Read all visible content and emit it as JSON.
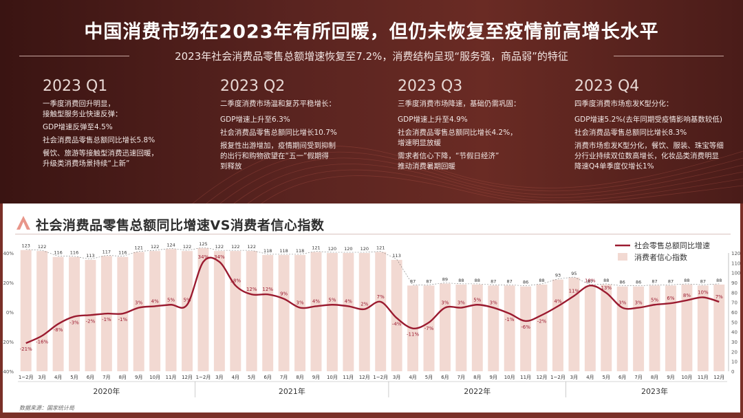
{
  "header": {
    "title": "中国消费市场在2023年有所回暖，但仍未恢复至疫情前高增长水平",
    "subtitle": "2023年社会消费品零售总额增速恢复至7.2%，消费结构呈现“服务强，商品弱”的特征"
  },
  "quarters": [
    {
      "title": "2023 Q1",
      "lines": [
        "一季度消费回升明显，",
        "接触型服务业快速反弹：",
        "GDP增速反弹至4.5%",
        "社会消费品零售总额同比增长5.8%",
        "餐饮、旅游等接触型消费迅速回暖，",
        "升级类消费场景持续“上新”"
      ]
    },
    {
      "title": "2023 Q2",
      "lines": [
        "二季度消费市场温和复苏平稳增长：",
        "GDP增速上升至6.3%",
        "社会消费品零售总额同比增长10.7%",
        "报复性出游增加，疫情期间受到抑制",
        "的出行和购物欲望在“五一”假期得",
        "到释放"
      ]
    },
    {
      "title": "2023 Q3",
      "lines": [
        "三季度消费市场降速，基础仍需巩固：",
        "GDP增速上升至4.9%",
        "社会消费品零售总额同比增长4.2%，",
        "增速明显放缓",
        "需求者信心下降，“节假日经济”",
        "推动消费暑期回暖"
      ]
    },
    {
      "title": "2023 Q4",
      "lines": [
        "四季度消费市场愈发K型分化：",
        "GDP增速5.2%(去年同期受疫情影响基数较低)",
        "社会消费品零售总额同比增长8.3%",
        "消费市场愈发K型分化，餐饮、服装、珠宝等细",
        "分行业持续双位数高增长，化妆品类消费明显",
        "降速Q4单季度仅增长1%"
      ]
    }
  ],
  "chart_section": {
    "title": "社会消费品零售总额同比增速VS消费者信心指数",
    "source": "数据来源：国家统计局"
  },
  "chart_data": {
    "type": "bar",
    "categories": [
      "1~2月",
      "3月",
      "4月",
      "5月",
      "6月",
      "7月",
      "8月",
      "9月",
      "10月",
      "11月",
      "12月",
      "1~2月",
      "3月",
      "4月",
      "5月",
      "6月",
      "7月",
      "8月",
      "9月",
      "10月",
      "11月",
      "12月",
      "1~2月",
      "3月",
      "4月",
      "5月",
      "6月",
      "7月",
      "8月",
      "9月",
      "10月",
      "11月",
      "12月",
      "1~2月",
      "3月",
      "4月",
      "5月",
      "6月",
      "7月",
      "8月",
      "9月",
      "10月",
      "11月",
      "12月"
    ],
    "year_groups": [
      {
        "label": "2020年",
        "start": 0,
        "end": 10
      },
      {
        "label": "2021年",
        "start": 11,
        "end": 22
      },
      {
        "label": "2022年",
        "start": 23,
        "end": 33
      },
      {
        "label": "2023年",
        "start": 34,
        "end": 44
      }
    ],
    "series": [
      {
        "name": "消费者信心指数",
        "type": "bar",
        "axis": "right",
        "values": [
          123,
          122,
          116,
          116,
          113,
          117,
          116,
          121,
          122,
          124,
          122,
          125,
          122,
          122,
          122,
          118,
          118,
          118,
          121,
          120,
          120,
          120,
          121,
          113,
          87,
          87,
          89,
          88,
          88,
          87,
          87,
          86,
          88,
          93,
          95,
          87,
          88,
          86,
          86,
          87,
          87,
          88,
          87,
          88
        ],
        "labels": [
          "123",
          "122",
          "116",
          "116",
          "113",
          "117",
          "116",
          "121",
          "122",
          "124",
          "122",
          "125",
          "122",
          "122",
          "122",
          "118",
          "118",
          "118",
          "121",
          "120",
          "120",
          "120",
          "121",
          "113",
          "87",
          "87",
          "89",
          "88",
          "88",
          "87",
          "87",
          "86",
          "88",
          "93",
          "95",
          "87",
          "88",
          "86",
          "86",
          "87",
          "87",
          "88",
          "87",
          "88"
        ]
      },
      {
        "name": "社会零售总额同比增速",
        "type": "line",
        "axis": "left",
        "values": [
          -21,
          -16,
          -8,
          -3,
          -2,
          -1,
          -1,
          3,
          4,
          5,
          5,
          34,
          34,
          18,
          12,
          12,
          9,
          3,
          4,
          5,
          4,
          2,
          7,
          -4,
          -11,
          -7,
          3,
          3,
          5,
          3,
          -1,
          -6,
          -2,
          4,
          11,
          18,
          13,
          3,
          3,
          5,
          6,
          8,
          10,
          7
        ],
        "labels": [
          "-21%",
          "-16%",
          "-8%",
          "-3%",
          "-2%",
          "-1%",
          "-1%",
          "3%",
          "4%",
          "5%",
          "5%",
          "34%",
          "34%",
          "18%",
          "12%",
          "12%",
          "9%",
          "3%",
          "4%",
          "5%",
          "4%",
          "2%",
          "7%",
          "-4%",
          "-11%",
          "-7%",
          "3%",
          "3%",
          "5%",
          "3%",
          "-1%",
          "-6%",
          "-2%",
          "4%",
          "11%",
          "18%",
          "13%",
          "3%",
          "3%",
          "5%",
          "6%",
          "8%",
          "10%",
          "7%"
        ]
      }
    ],
    "left_axis": {
      "ylim": [
        -40,
        40
      ],
      "ticks": [
        "-40%",
        "-20%",
        "0%",
        "20%",
        "40%"
      ]
    },
    "right_axis": {
      "ylim": [
        0,
        120
      ],
      "ticks": [
        "0",
        "10",
        "20",
        "30",
        "40",
        "50",
        "60",
        "70",
        "80",
        "90",
        "100",
        "110",
        "120"
      ]
    },
    "legend_position": "top-right",
    "colors": {
      "line": "#9b1b30",
      "bar": "#f2d9d2"
    }
  }
}
